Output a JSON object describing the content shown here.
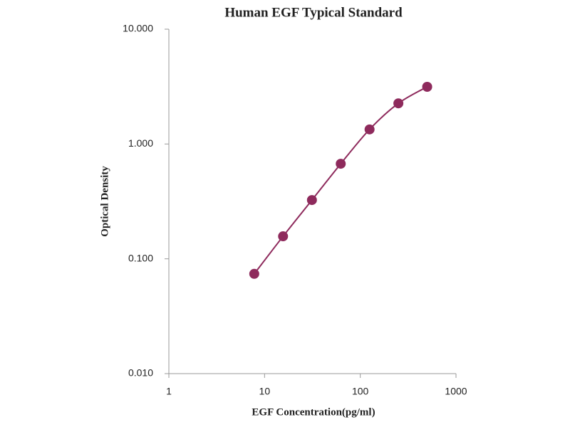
{
  "chart_data": {
    "type": "scatter",
    "title": "Human  EGF Typical Standard",
    "x_label": "EGF  Concentration(pg/ml)",
    "y_label": "Optical  Density",
    "x_scale": "log",
    "y_scale": "log",
    "series": [
      {
        "color": "#8e2a5c",
        "x": [
          7.8,
          15.6,
          31.25,
          62.5,
          125,
          250,
          500
        ],
        "values": [
          0.074,
          0.157,
          0.325,
          0.673,
          1.34,
          2.26,
          3.15
        ]
      }
    ],
    "xlim": [
      1,
      1000
    ],
    "xticks": [
      1,
      10,
      100,
      1000
    ],
    "ylim": [
      0.01,
      10
    ],
    "yticks": [
      {
        "value": 0.01,
        "label": "0.010"
      },
      {
        "value": 0.1,
        "label": "0.100"
      },
      {
        "value": 1,
        "label": "1.000"
      },
      {
        "value": 10,
        "label": "10.000"
      }
    ],
    "grid": false
  }
}
